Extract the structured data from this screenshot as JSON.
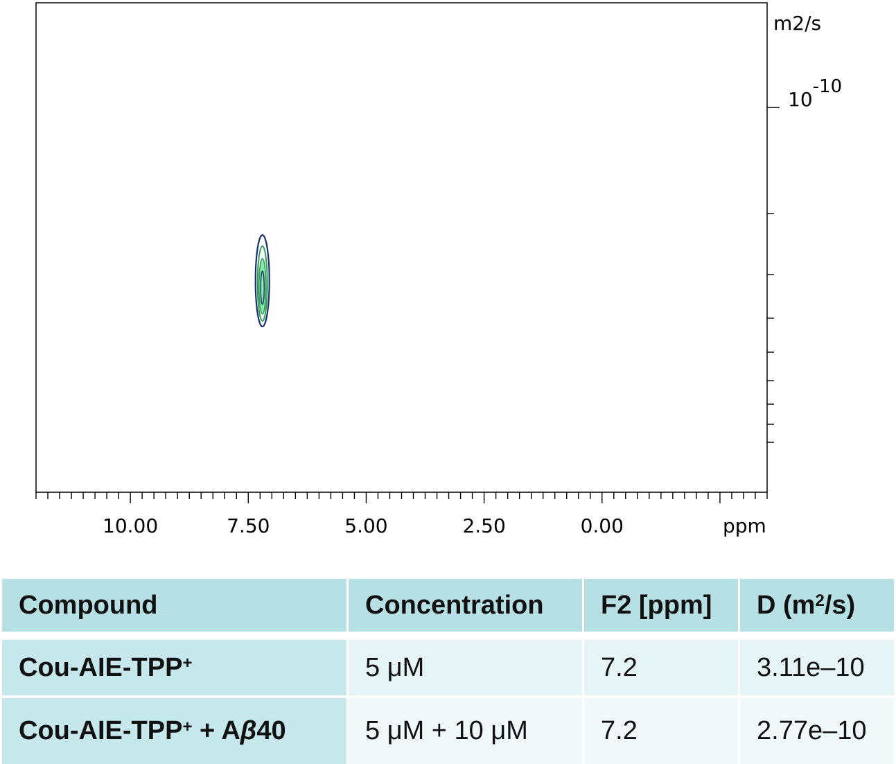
{
  "chart_data": {
    "type": "contour",
    "xlabel": "",
    "x_unit": "ppm",
    "y_unit": "m2/s",
    "x_ticks": [
      "10.00",
      "7.50",
      "5.00",
      "2.50",
      "0.00"
    ],
    "y_tick_label": {
      "base": "10",
      "exponent": "-10"
    },
    "xlim": [
      12.0,
      -3.5
    ],
    "peak": {
      "F2_ppm": 7.2,
      "D": 3.11e-10
    },
    "colors": {
      "outer": "#1b2f6e",
      "inner": "#2e9e5a",
      "core": "#8ee8a8"
    }
  },
  "table": {
    "headers": {
      "compound": "Compound",
      "concentration": "Concentration",
      "f2": "F2 [ppm]",
      "d_pre": "D (m",
      "d_sup": "2",
      "d_post": "/s)"
    },
    "rows": [
      {
        "compound": "Cou-AIE-TPP",
        "compound_sup": "+",
        "compound_suffix": "",
        "compound_italic": "",
        "compound_tail": "",
        "concentration": "5 μM",
        "f2": "7.2",
        "d": "3.11e–10"
      },
      {
        "compound": "Cou-AIE-TPP",
        "compound_sup": "+",
        "compound_suffix": " + A",
        "compound_italic": "β",
        "compound_tail": "40",
        "concentration": "5 μM + 10 μM",
        "f2": "7.2",
        "d": "2.77e–10"
      }
    ]
  }
}
